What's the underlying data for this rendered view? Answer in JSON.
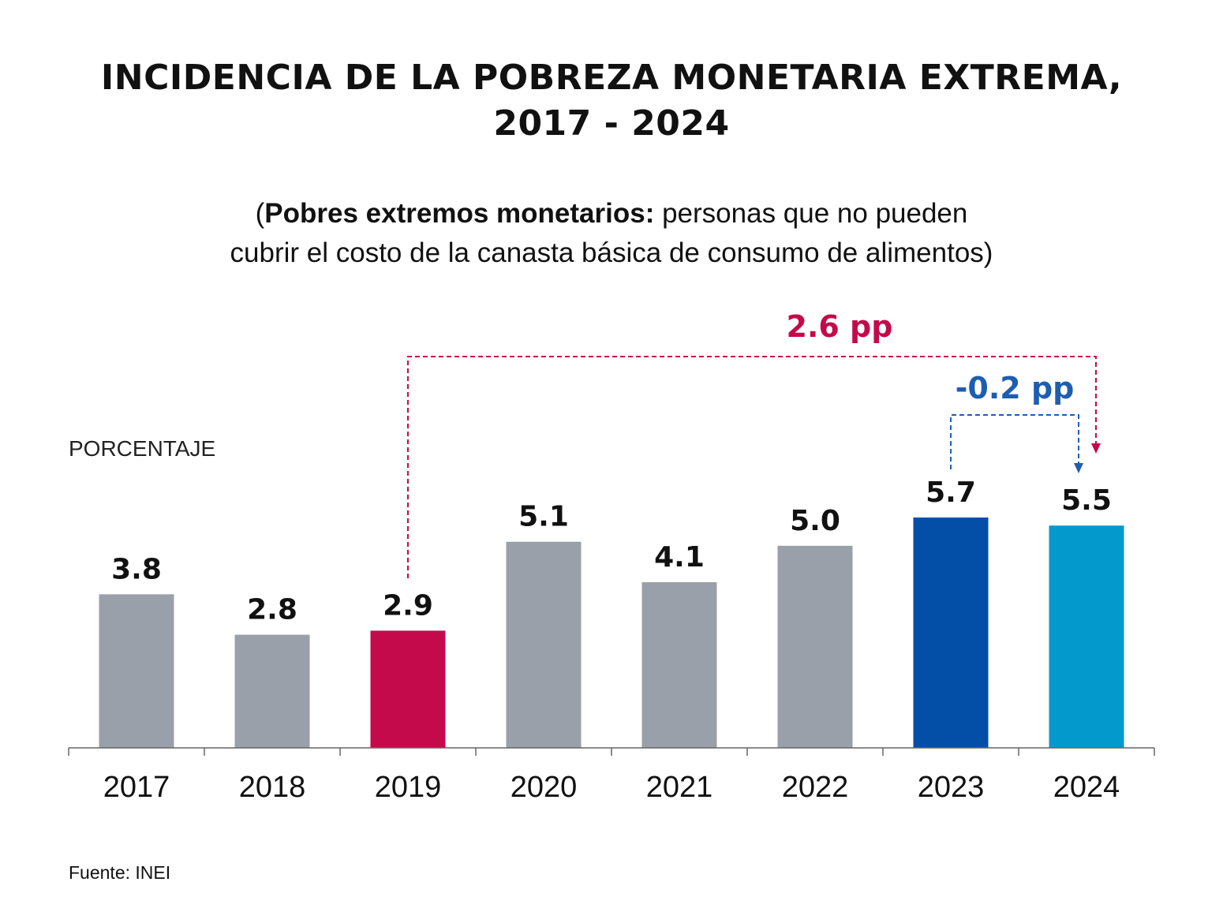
{
  "title_line1": "INCIDENCIA DE LA POBREZA MONETARIA EXTREMA,",
  "title_line2": "2017 - 2024",
  "subtitle": {
    "open_paren": "(",
    "bold": "Pobres extremos monetarios:",
    "text_line1": " personas que no pueden",
    "text_line2": "cubrir el costo de la canasta básica de consumo de alimentos)"
  },
  "source": "Fuente: INEI",
  "colors": {
    "default_bar": "#9aa0aa",
    "highlight_2019": "#c40a4a",
    "highlight_2023": "#034fa8",
    "highlight_2024": "#0399cc",
    "annotation_red": "#c40a4a",
    "annotation_blue": "#1e5eb0"
  },
  "chart_data": {
    "type": "bar",
    "ylabel": "PORCENTAJE",
    "categories": [
      "2017",
      "2018",
      "2019",
      "2020",
      "2021",
      "2022",
      "2023",
      "2024"
    ],
    "values": [
      3.8,
      2.8,
      2.9,
      5.1,
      4.1,
      5.0,
      5.7,
      5.5
    ],
    "value_labels": [
      "3.8",
      "2.8",
      "2.9",
      "5.1",
      "4.1",
      "5.0",
      "5.7",
      "5.5"
    ],
    "bar_colors": [
      "#9aa0aa",
      "#9aa0aa",
      "#c40a4a",
      "#9aa0aa",
      "#9aa0aa",
      "#9aa0aa",
      "#034fa8",
      "#0399cc"
    ],
    "ylim": [
      0,
      5.7
    ],
    "grid": false,
    "annotations": [
      {
        "text": "2.6 pp",
        "from": "2019",
        "to": "2024",
        "color": "#c40a4a"
      },
      {
        "text": "-0.2 pp",
        "from": "2023",
        "to": "2024",
        "color": "#1e5eb0"
      }
    ]
  }
}
